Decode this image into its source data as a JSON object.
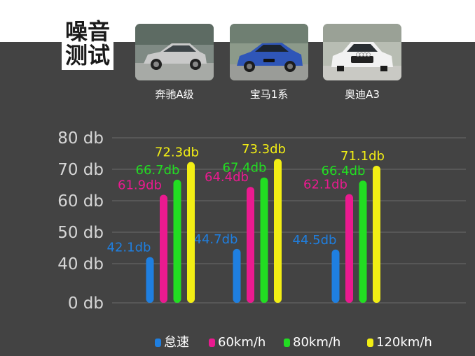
{
  "header": {
    "title_line1": "噪音",
    "title_line2": "测试"
  },
  "cars": [
    {
      "name": "奔驰A级",
      "body_color": "#c9c9c9"
    },
    {
      "name": "宝马1系",
      "body_color": "#2f56b8"
    },
    {
      "name": "奥迪A3",
      "body_color": "#f2f2f2"
    }
  ],
  "colors": {
    "background": "#434343",
    "grid": "#6b6b6b",
    "tick_text": "#d6d6d6",
    "idle": "#1f7fe0",
    "kmh60": "#ea1a8f",
    "kmh80": "#22dd22",
    "kmh120": "#f2ee14"
  },
  "chart_data": {
    "type": "bar",
    "categories": [
      "奔驰A级",
      "宝马1系",
      "奥迪A3"
    ],
    "series": [
      {
        "name": "怠速",
        "values": [
          42.1,
          44.7,
          44.5
        ],
        "labels": [
          "42.1db",
          "44.7db",
          "44.5db"
        ]
      },
      {
        "name": "60km/h",
        "values": [
          61.9,
          64.4,
          62.1
        ],
        "labels": [
          "61.9db",
          "64.4db",
          "62.1db"
        ]
      },
      {
        "name": "80km/h",
        "values": [
          66.7,
          67.4,
          66.4
        ],
        "labels": [
          "66.7db",
          "67.4db",
          "66.4db"
        ]
      },
      {
        "name": "120km/h",
        "values": [
          72.3,
          73.3,
          71.1
        ],
        "labels": [
          "72.3db",
          "73.3db",
          "71.1db"
        ]
      }
    ],
    "y_ticks": [
      {
        "value": 0,
        "label": "0 db"
      },
      {
        "value": 40,
        "label": "40 db"
      },
      {
        "value": 50,
        "label": "50 db"
      },
      {
        "value": 60,
        "label": "60 db"
      },
      {
        "value": 70,
        "label": "70 db"
      },
      {
        "value": 80,
        "label": "80 db"
      }
    ],
    "ylim": [
      0,
      80
    ],
    "axis_break": [
      0,
      40
    ],
    "grid": true,
    "legend": "bottom"
  }
}
